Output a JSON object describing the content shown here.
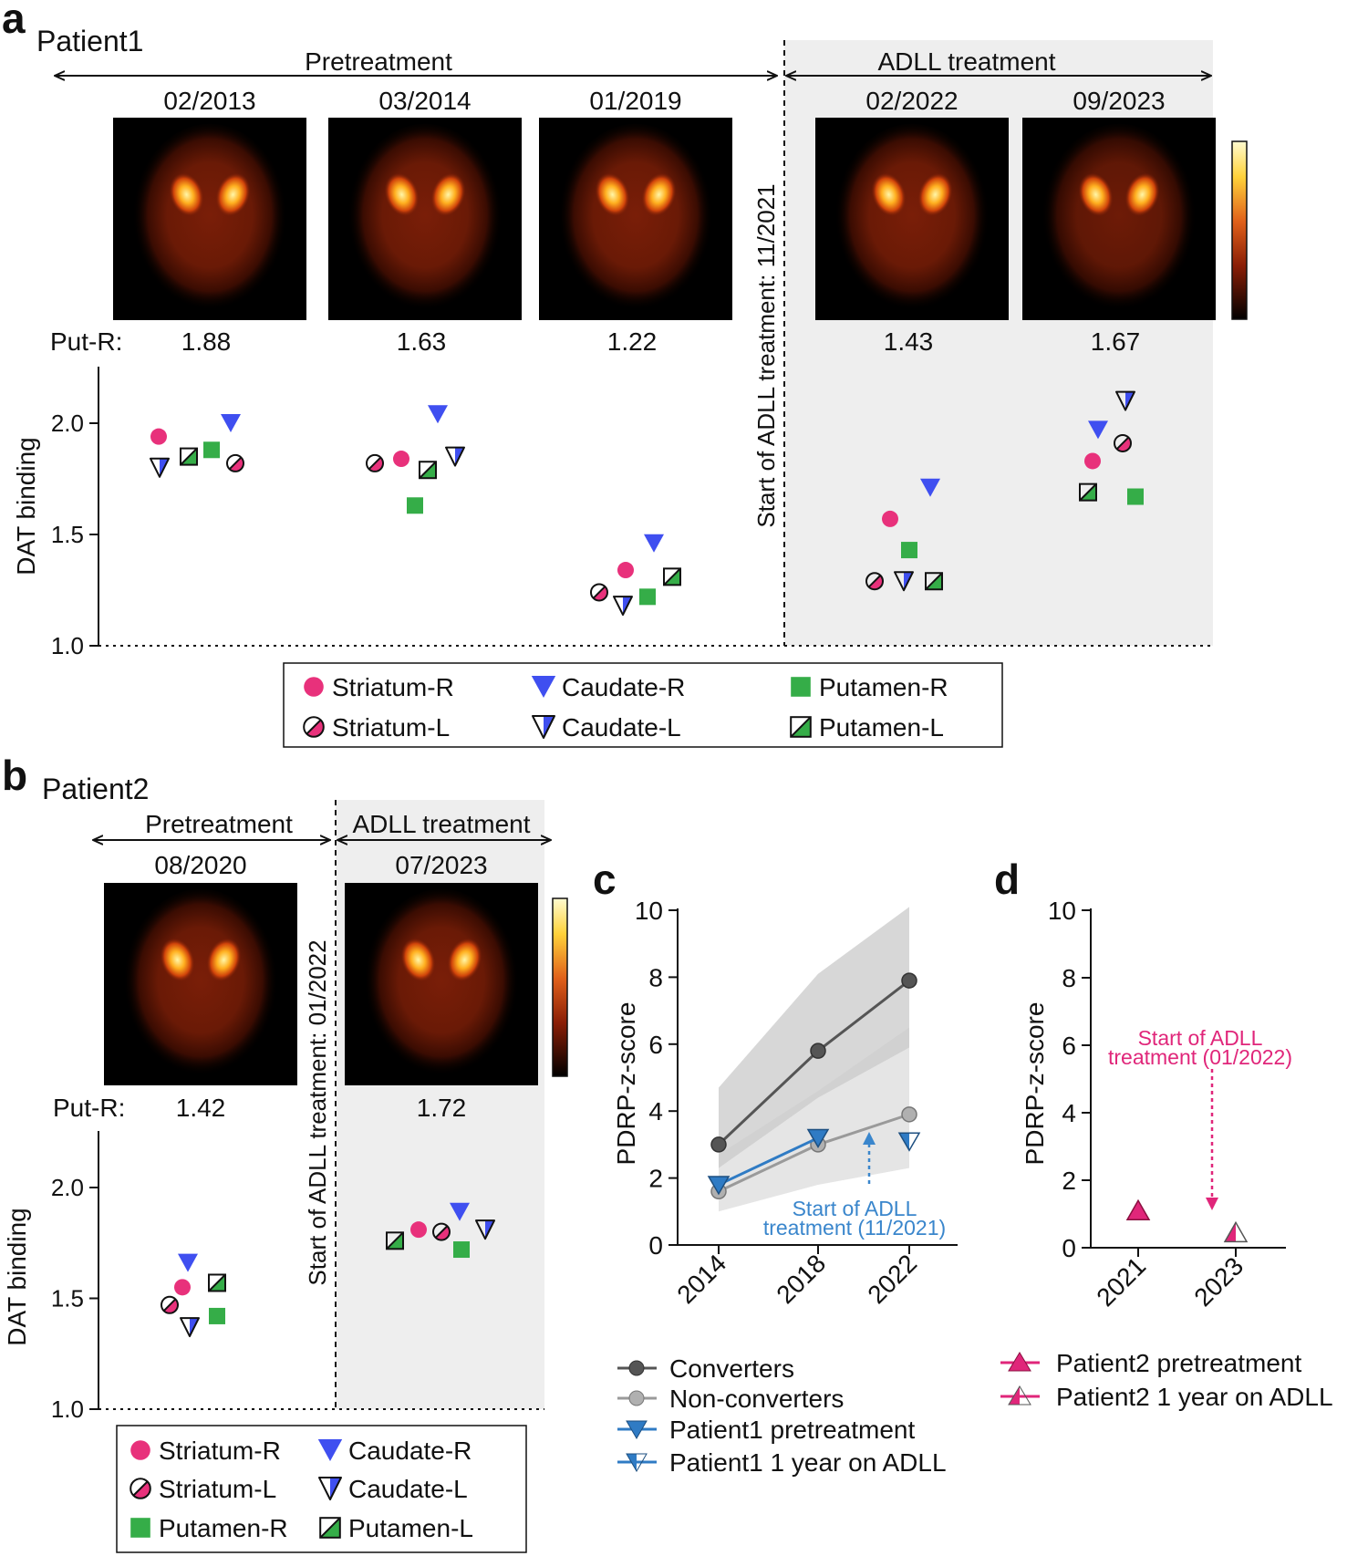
{
  "colors": {
    "striatum": "#e8317b",
    "caudate": "#3f4ff0",
    "putamen": "#35ad48",
    "converters": "#555555",
    "nonconverters": "#9a9a9a",
    "patient1": "#2f7bc4",
    "patient2": "#e0267a",
    "shade": "#eeeeee"
  },
  "panel_a": {
    "letter": "a",
    "title": "Patient1",
    "pre_label": "Pretreatment",
    "treat_label": "ADLL treatment",
    "start_label": "Start of ADLL treatment: 11/2021",
    "dates": [
      "02/2013",
      "03/2014",
      "01/2019",
      "02/2022",
      "09/2023"
    ],
    "put_r_label": "Put-R:",
    "put_r_values": [
      "1.88",
      "1.63",
      "1.22",
      "1.43",
      "1.67"
    ],
    "y_label": "DAT binding",
    "y_ticks": [
      "2.0",
      "1.5",
      "1.0"
    ]
  },
  "panel_b": {
    "letter": "b",
    "title": "Patient2",
    "pre_label": "Pretreatment",
    "treat_label": "ADLL treatment",
    "start_label": "Start of ADLL treatment: 01/2022",
    "dates": [
      "08/2020",
      "07/2023"
    ],
    "put_r_label": "Put-R:",
    "put_r_values": [
      "1.42",
      "1.72"
    ],
    "y_label": "DAT binding",
    "y_ticks": [
      "2.0",
      "1.5",
      "1.0"
    ]
  },
  "legend_regions": {
    "striatum_r": "Striatum-R",
    "striatum_l": "Striatum-L",
    "caudate_r": "Caudate-R",
    "caudate_l": "Caudate-L",
    "putamen_r": "Putamen-R",
    "putamen_l": "Putamen-L"
  },
  "panel_c": {
    "letter": "c",
    "y_label": "PDRP-z-score",
    "annotation_line1": "Start of ADLL",
    "annotation_line2": "treatment (11/2021)",
    "legend": [
      "Converters",
      "Non-converters",
      "Patient1 pretreatment",
      "Patient1 1 year on ADLL"
    ]
  },
  "panel_d": {
    "letter": "d",
    "y_label": "PDRP-z-score",
    "annotation_line1": "Start of ADLL",
    "annotation_line2": "treatment (01/2022)",
    "legend": [
      "Patient2 pretreatment",
      "Patient2 1 year on ADLL"
    ]
  },
  "chart_data": [
    {
      "type": "scatter",
      "panel": "a",
      "ylabel": "DAT binding",
      "ylim": [
        1.0,
        2.25
      ],
      "categories": [
        "02/2013",
        "03/2014",
        "01/2019",
        "02/2022",
        "09/2023"
      ],
      "series": [
        {
          "name": "Striatum-R",
          "values": [
            1.94,
            1.84,
            1.34,
            1.57,
            1.83
          ]
        },
        {
          "name": "Striatum-L",
          "values": [
            1.82,
            1.82,
            1.24,
            1.29,
            1.91
          ]
        },
        {
          "name": "Caudate-R",
          "values": [
            2.0,
            2.04,
            1.46,
            1.71,
            1.97
          ]
        },
        {
          "name": "Caudate-L",
          "values": [
            1.8,
            1.85,
            1.18,
            1.29,
            2.1
          ]
        },
        {
          "name": "Putamen-R",
          "values": [
            1.88,
            1.63,
            1.22,
            1.43,
            1.67
          ]
        },
        {
          "name": "Putamen-L",
          "values": [
            1.85,
            1.79,
            1.31,
            1.29,
            1.69
          ]
        }
      ]
    },
    {
      "type": "scatter",
      "panel": "b",
      "ylabel": "DAT binding",
      "ylim": [
        1.0,
        2.25
      ],
      "categories": [
        "08/2020",
        "07/2023"
      ],
      "series": [
        {
          "name": "Striatum-R",
          "values": [
            1.55,
            1.81
          ]
        },
        {
          "name": "Striatum-L",
          "values": [
            1.47,
            1.8
          ]
        },
        {
          "name": "Caudate-R",
          "values": [
            1.66,
            1.89
          ]
        },
        {
          "name": "Caudate-L",
          "values": [
            1.37,
            1.81
          ]
        },
        {
          "name": "Putamen-R",
          "values": [
            1.42,
            1.72
          ]
        },
        {
          "name": "Putamen-L",
          "values": [
            1.57,
            1.76
          ]
        }
      ]
    },
    {
      "type": "line",
      "panel": "c",
      "ylabel": "PDRP-z-score",
      "ylim": [
        0,
        10
      ],
      "yticks": [
        0,
        2,
        4,
        6,
        8,
        10
      ],
      "x": [
        "2014",
        "2018",
        "2022"
      ],
      "series": [
        {
          "name": "Converters",
          "values": [
            3.0,
            5.8,
            7.9
          ],
          "band_upper": [
            4.7,
            8.1,
            10.1
          ],
          "band_lower": [
            2.3,
            4.4,
            5.9
          ]
        },
        {
          "name": "Non-converters",
          "values": [
            1.6,
            3.0,
            3.9
          ],
          "band_upper": [
            2.7,
            4.6,
            6.5
          ],
          "band_lower": [
            1.0,
            1.8,
            2.3
          ]
        },
        {
          "name": "Patient1 pretreatment",
          "values": [
            1.8,
            3.2,
            null
          ]
        },
        {
          "name": "Patient1 1 year on ADLL",
          "values": [
            null,
            null,
            3.1
          ]
        }
      ],
      "annotation_x": 2020.9
    },
    {
      "type": "scatter",
      "panel": "d",
      "ylabel": "PDRP-z-score",
      "ylim": [
        0,
        10
      ],
      "yticks": [
        0,
        2,
        4,
        6,
        8,
        10
      ],
      "x": [
        "2021",
        "2023"
      ],
      "series": [
        {
          "name": "Patient2 pretreatment",
          "values": [
            1.1,
            null
          ]
        },
        {
          "name": "Patient2 1 year on ADLL",
          "values": [
            null,
            0.45
          ]
        }
      ],
      "annotation_x": 2022.5
    }
  ]
}
